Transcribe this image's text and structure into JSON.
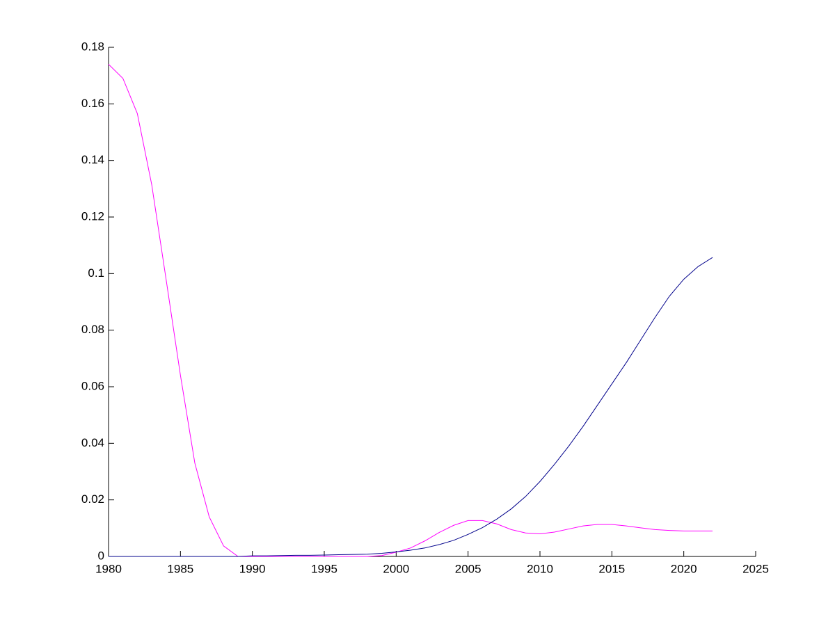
{
  "chart_data": {
    "type": "line",
    "x": [
      1980,
      1981,
      1982,
      1983,
      1984,
      1985,
      1986,
      1987,
      1988,
      1989,
      1990,
      1991,
      1992,
      1993,
      1994,
      1995,
      1996,
      1997,
      1998,
      1999,
      2000,
      2001,
      2002,
      2003,
      2004,
      2005,
      2006,
      2007,
      2008,
      2009,
      2010,
      2011,
      2012,
      2013,
      2014,
      2015,
      2016,
      2017,
      2018,
      2019,
      2020,
      2021,
      2022
    ],
    "series": [
      {
        "color": "#ff00ff",
        "values": [
          0.174,
          0.169,
          0.1566,
          0.1315,
          0.098,
          0.064,
          0.033,
          0.014,
          0.0037,
          0,
          0,
          0,
          0,
          0,
          0,
          0,
          0,
          0,
          0,
          0.0003,
          0.0015,
          0.003,
          0.0055,
          0.0085,
          0.011,
          0.0127,
          0.0127,
          0.0115,
          0.0095,
          0.0083,
          0.008,
          0.0086,
          0.0097,
          0.0108,
          0.0113,
          0.0113,
          0.0108,
          0.0101,
          0.0095,
          0.0092,
          0.009,
          0.009,
          0.009
        ]
      },
      {
        "color": "#00008b",
        "values": [
          0,
          0,
          0,
          0,
          0,
          0,
          0,
          0,
          0,
          0,
          0.0002,
          0.0002,
          0.0003,
          0.0004,
          0.0004,
          0.0005,
          0.0006,
          0.0007,
          0.0008,
          0.0011,
          0.0016,
          0.0022,
          0.003,
          0.0042,
          0.0057,
          0.0078,
          0.0102,
          0.0132,
          0.0168,
          0.0212,
          0.0265,
          0.0325,
          0.039,
          0.046,
          0.0535,
          0.061,
          0.0685,
          0.0765,
          0.0845,
          0.092,
          0.098,
          0.1025,
          0.1057
        ]
      }
    ],
    "xlim": [
      1980,
      2025
    ],
    "xticks": [
      1980,
      1985,
      1990,
      1995,
      2000,
      2005,
      2010,
      2015,
      2020,
      2025
    ],
    "ylim": [
      0,
      0.18
    ],
    "yticks": [
      0,
      0.02,
      0.04,
      0.06,
      0.08,
      0.1,
      0.12,
      0.14,
      0.16,
      0.18
    ]
  }
}
